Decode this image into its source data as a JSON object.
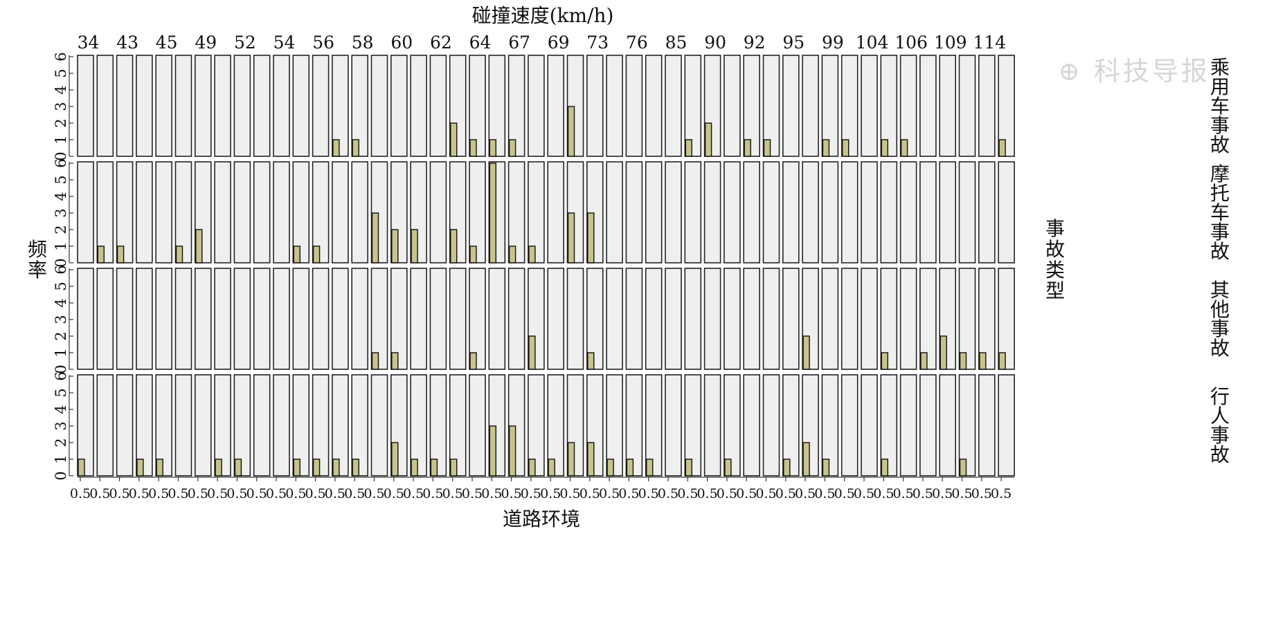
{
  "watermark": "科技导报",
  "colors": {
    "bar_fill": "#c8c28c",
    "panel_fill": "#efefef",
    "panel_stroke": "#222222",
    "bar_stroke": "#111111"
  },
  "chart_data": {
    "type": "bar",
    "layout": "faceted grid",
    "title": "碰撞速度(km/h)",
    "xlabel": "道路环境",
    "ylabel": "频率",
    "right_label": "事故类型",
    "ylim": [
      0,
      6
    ],
    "yticks": [
      "0",
      "1",
      "2",
      "3",
      "4",
      "5",
      "6"
    ],
    "x_tick_label": "0.5",
    "grid": false,
    "speeds": [
      "34",
      "43",
      "45",
      "49",
      "52",
      "54",
      "56",
      "58",
      "60",
      "62",
      "64",
      "67",
      "69",
      "73",
      "76",
      "85",
      "90",
      "92",
      "95",
      "99",
      "104",
      "106",
      "109",
      "114"
    ],
    "rows": [
      {
        "name": "乘用车事故",
        "values": [
          0,
          0,
          0,
          0,
          0,
          0,
          0,
          0,
          0,
          0,
          0,
          0,
          0,
          1,
          1,
          0,
          0,
          0,
          0,
          2,
          1,
          1,
          1,
          0,
          0,
          3,
          0,
          0,
          0,
          0,
          0,
          1,
          2,
          0,
          1,
          1,
          0,
          0,
          1,
          1,
          0,
          1,
          1,
          0,
          0,
          0,
          0,
          1
        ]
      },
      {
        "name": "摩托车事故",
        "values": [
          0,
          1,
          1,
          0,
          0,
          1,
          2,
          0,
          0,
          0,
          0,
          1,
          1,
          0,
          0,
          3,
          2,
          2,
          0,
          2,
          1,
          6,
          1,
          1,
          0,
          3,
          3,
          0,
          0,
          0,
          0,
          0,
          0,
          0,
          0,
          0,
          0,
          0,
          0,
          0,
          0,
          0,
          0,
          0,
          0,
          0,
          0,
          0
        ]
      },
      {
        "name": "其他事故",
        "values": [
          0,
          0,
          0,
          0,
          0,
          0,
          0,
          0,
          0,
          0,
          0,
          0,
          0,
          0,
          0,
          1,
          1,
          0,
          0,
          0,
          1,
          0,
          0,
          2,
          0,
          0,
          1,
          0,
          0,
          0,
          0,
          0,
          0,
          0,
          0,
          0,
          0,
          2,
          0,
          0,
          0,
          1,
          0,
          1,
          2,
          1,
          1,
          1
        ]
      },
      {
        "name": "行人事故",
        "values": [
          1,
          0,
          0,
          1,
          1,
          0,
          0,
          1,
          1,
          0,
          0,
          1,
          1,
          1,
          1,
          0,
          2,
          1,
          1,
          1,
          0,
          3,
          3,
          1,
          1,
          2,
          2,
          1,
          1,
          1,
          0,
          1,
          0,
          1,
          0,
          0,
          1,
          2,
          1,
          0,
          0,
          1,
          0,
          0,
          0,
          1,
          0,
          0
        ]
      }
    ]
  }
}
